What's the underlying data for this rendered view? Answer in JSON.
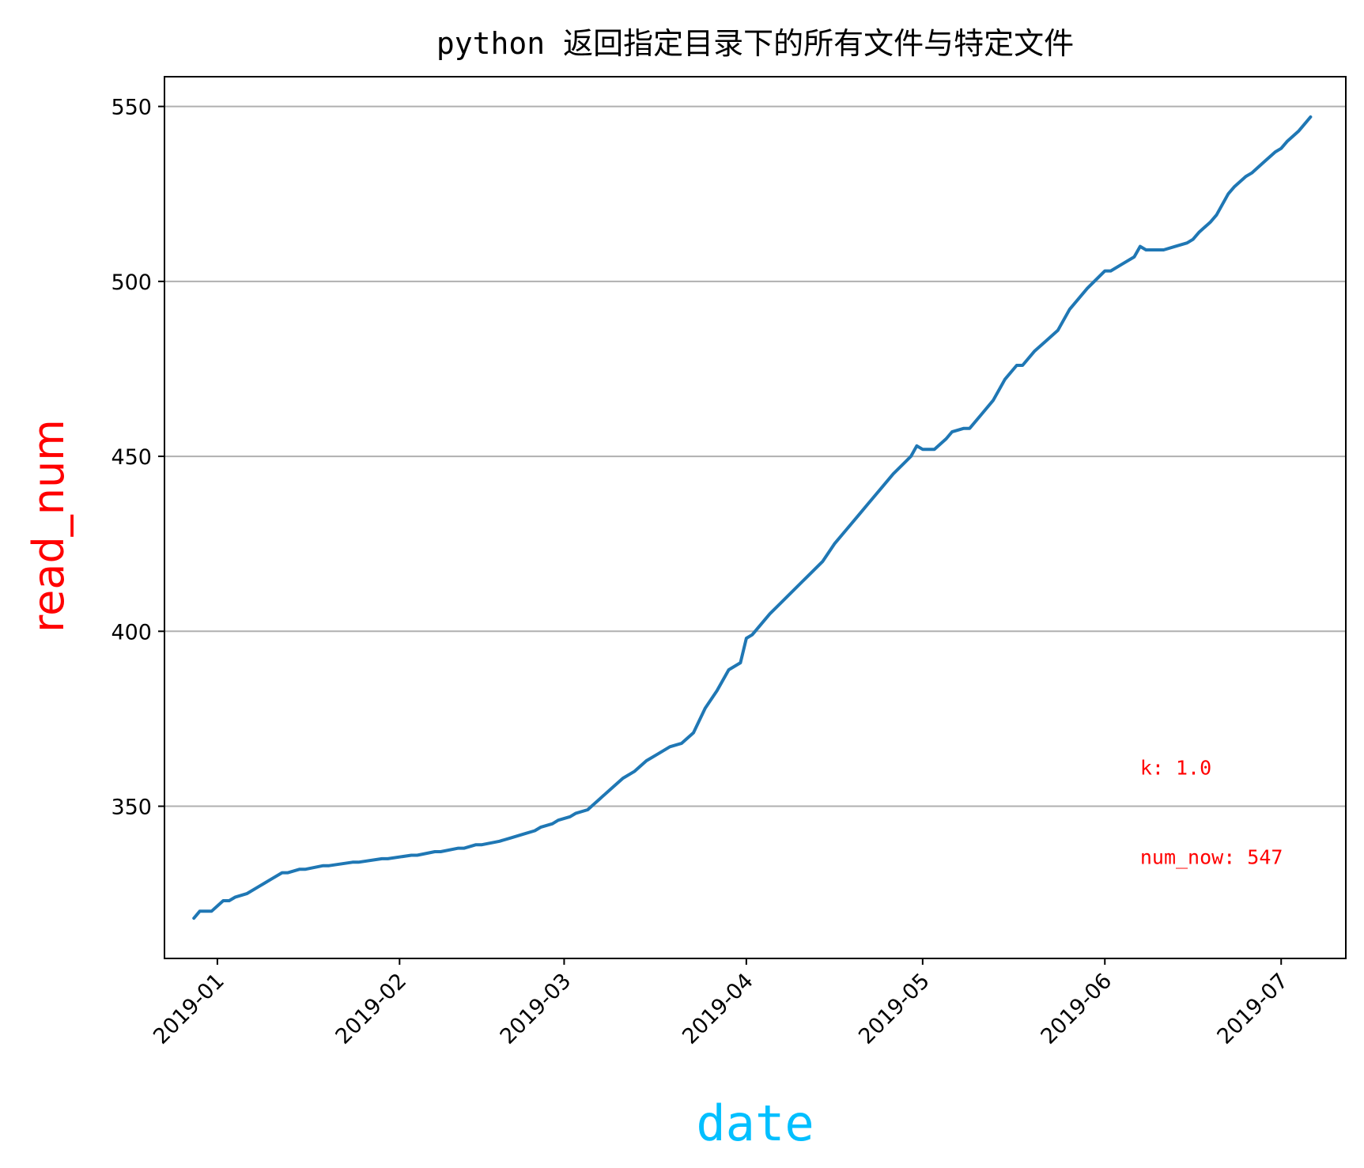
{
  "chart_data": {
    "type": "line",
    "title": "python 返回指定目录下的所有文件与特定文件",
    "xlabel": "date",
    "ylabel": "read_num",
    "xlabel_color": "#00bfff",
    "ylabel_color": "#ff0000",
    "line_color": "#1f77b4",
    "annotation_color": "#ff0000",
    "grid": {
      "y": true,
      "x": false,
      "color": "#b0b0b0"
    },
    "xlim": [
      "2018-12-23",
      "2019-07-12"
    ],
    "ylim": [
      306.5,
      558.5
    ],
    "x_tick_labels": [
      "2019-01",
      "2019-02",
      "2019-03",
      "2019-04",
      "2019-05",
      "2019-06",
      "2019-07"
    ],
    "x_tick_dates": [
      "2019-01-01",
      "2019-02-01",
      "2019-03-01",
      "2019-04-01",
      "2019-05-01",
      "2019-06-01",
      "2019-07-01"
    ],
    "y_tick_labels": [
      "350",
      "400",
      "450",
      "500",
      "550"
    ],
    "y_tick_values": [
      350,
      400,
      450,
      500,
      550
    ],
    "annotations": [
      {
        "text": "k: 1.0",
        "x": "2019-06-07",
        "y": 359
      },
      {
        "text": "num_now: 547",
        "x": "2019-06-07",
        "y": 333.5
      }
    ],
    "series": [
      {
        "x": [
          "2018-12-28",
          "2018-12-29",
          "2018-12-31",
          "2019-01-02",
          "2019-01-03",
          "2019-01-04",
          "2019-01-06",
          "2019-01-08",
          "2019-01-09",
          "2019-01-10",
          "2019-01-12",
          "2019-01-13",
          "2019-01-15",
          "2019-01-16",
          "2019-01-19",
          "2019-01-20",
          "2019-01-24",
          "2019-01-25",
          "2019-01-29",
          "2019-01-30",
          "2019-02-03",
          "2019-02-04",
          "2019-02-07",
          "2019-02-08",
          "2019-02-11",
          "2019-02-12",
          "2019-02-14",
          "2019-02-15",
          "2019-02-18",
          "2019-02-20",
          "2019-02-22",
          "2019-02-24",
          "2019-02-25",
          "2019-02-27",
          "2019-02-28",
          "2019-03-02",
          "2019-03-03",
          "2019-03-05",
          "2019-03-07",
          "2019-03-09",
          "2019-03-11",
          "2019-03-13",
          "2019-03-15",
          "2019-03-17",
          "2019-03-19",
          "2019-03-21",
          "2019-03-23",
          "2019-03-25",
          "2019-03-27",
          "2019-03-29",
          "2019-03-31",
          "2019-04-01",
          "2019-04-02",
          "2019-04-05",
          "2019-04-08",
          "2019-04-11",
          "2019-04-14",
          "2019-04-16",
          "2019-04-18",
          "2019-04-20",
          "2019-04-22",
          "2019-04-24",
          "2019-04-26",
          "2019-04-29",
          "2019-04-30",
          "2019-05-01",
          "2019-05-03",
          "2019-05-05",
          "2019-05-06",
          "2019-05-08",
          "2019-05-09",
          "2019-05-11",
          "2019-05-13",
          "2019-05-15",
          "2019-05-17",
          "2019-05-18",
          "2019-05-20",
          "2019-05-22",
          "2019-05-24",
          "2019-05-26",
          "2019-05-29",
          "2019-06-01",
          "2019-06-02",
          "2019-06-04",
          "2019-06-06",
          "2019-06-07",
          "2019-06-08",
          "2019-06-09",
          "2019-06-11",
          "2019-06-13",
          "2019-06-15",
          "2019-06-16",
          "2019-06-17",
          "2019-06-19",
          "2019-06-20",
          "2019-06-22",
          "2019-06-23",
          "2019-06-25",
          "2019-06-26",
          "2019-06-28",
          "2019-06-30",
          "2019-07-01",
          "2019-07-02",
          "2019-07-04",
          "2019-07-05",
          "2019-07-06"
        ],
        "values": [
          318,
          320,
          320,
          323,
          323,
          324,
          325,
          327,
          328,
          329,
          331,
          331,
          332,
          332,
          333,
          333,
          334,
          334,
          335,
          335,
          336,
          336,
          337,
          337,
          338,
          338,
          339,
          339,
          340,
          341,
          342,
          343,
          344,
          345,
          346,
          347,
          348,
          349,
          352,
          355,
          358,
          360,
          363,
          365,
          367,
          368,
          371,
          378,
          383,
          389,
          391,
          398,
          399,
          405,
          410,
          415,
          420,
          425,
          429,
          433,
          437,
          441,
          445,
          450,
          453,
          452,
          452,
          455,
          457,
          458,
          458,
          462,
          466,
          472,
          476,
          476,
          480,
          483,
          486,
          492,
          498,
          503,
          503,
          505,
          507,
          510,
          509,
          509,
          509,
          510,
          511,
          512,
          514,
          517,
          519,
          525,
          527,
          530,
          531,
          534,
          537,
          538,
          540,
          543,
          545,
          547
        ]
      }
    ]
  }
}
